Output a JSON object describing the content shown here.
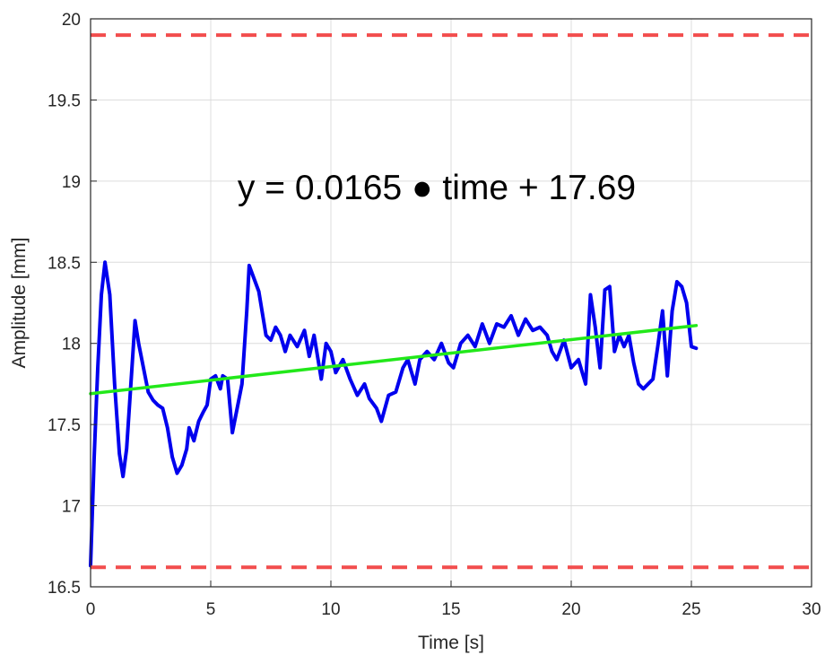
{
  "chart_data": {
    "type": "line",
    "title": "",
    "xlabel": "Time [s]",
    "ylabel": "Amplitude [mm]",
    "xlim": [
      0,
      30
    ],
    "ylim": [
      16.5,
      20
    ],
    "xticks": [
      0,
      5,
      10,
      15,
      20,
      25,
      30
    ],
    "yticks": [
      16.5,
      17,
      17.5,
      18,
      18.5,
      19,
      19.5,
      20
    ],
    "xtick_labels": [
      "0",
      "5",
      "10",
      "15",
      "20",
      "25",
      "30"
    ],
    "ytick_labels": [
      "16.5",
      "17",
      "17.5",
      "18",
      "18.5",
      "19",
      "19.5",
      "20"
    ],
    "grid": true,
    "annotation": "y = 0.0165 ● time + 17.69",
    "series": [
      {
        "color": "#0000ee",
        "style": "solid",
        "x": [
          0,
          0.15,
          0.3,
          0.45,
          0.6,
          0.8,
          1.0,
          1.2,
          1.35,
          1.5,
          1.7,
          1.85,
          2.0,
          2.2,
          2.4,
          2.6,
          2.8,
          3.0,
          3.2,
          3.4,
          3.6,
          3.8,
          4.0,
          4.1,
          4.3,
          4.5,
          4.7,
          4.85,
          5.0,
          5.2,
          5.4,
          5.5,
          5.7,
          5.9,
          6.1,
          6.3,
          6.5,
          6.6,
          6.8,
          7.0,
          7.3,
          7.5,
          7.7,
          7.9,
          8.1,
          8.3,
          8.6,
          8.9,
          9.1,
          9.3,
          9.6,
          9.8,
          10.0,
          10.2,
          10.5,
          10.8,
          11.1,
          11.4,
          11.6,
          11.9,
          12.1,
          12.4,
          12.7,
          13.0,
          13.2,
          13.5,
          13.7,
          14.0,
          14.3,
          14.6,
          14.9,
          15.1,
          15.4,
          15.7,
          16.0,
          16.3,
          16.6,
          16.9,
          17.2,
          17.5,
          17.8,
          18.1,
          18.4,
          18.7,
          19.0,
          19.2,
          19.4,
          19.7,
          20.0,
          20.3,
          20.6,
          20.8,
          21.0,
          21.2,
          21.4,
          21.6,
          21.8,
          22.0,
          22.2,
          22.4,
          22.6,
          22.8,
          23.0,
          23.2,
          23.4,
          23.6,
          23.8,
          24.0,
          24.2,
          24.4,
          24.6,
          24.8,
          25.0,
          25.2
        ],
        "y": [
          16.63,
          17.3,
          17.85,
          18.3,
          18.5,
          18.3,
          17.75,
          17.32,
          17.18,
          17.35,
          17.8,
          18.14,
          18.0,
          17.85,
          17.7,
          17.65,
          17.62,
          17.6,
          17.48,
          17.3,
          17.2,
          17.25,
          17.35,
          17.48,
          17.4,
          17.52,
          17.58,
          17.62,
          17.78,
          17.8,
          17.72,
          17.8,
          17.78,
          17.45,
          17.6,
          17.75,
          18.2,
          18.48,
          18.4,
          18.32,
          18.05,
          18.02,
          18.1,
          18.05,
          17.95,
          18.05,
          17.98,
          18.08,
          17.92,
          18.05,
          17.78,
          18.0,
          17.95,
          17.82,
          17.9,
          17.78,
          17.68,
          17.75,
          17.66,
          17.6,
          17.52,
          17.68,
          17.7,
          17.85,
          17.9,
          17.75,
          17.9,
          17.95,
          17.9,
          18.0,
          17.88,
          17.85,
          18.0,
          18.05,
          17.98,
          18.12,
          18.0,
          18.12,
          18.1,
          18.17,
          18.05,
          18.15,
          18.08,
          18.1,
          18.05,
          17.95,
          17.9,
          18.02,
          17.85,
          17.9,
          17.75,
          18.3,
          18.1,
          17.85,
          18.33,
          18.35,
          17.95,
          18.05,
          17.98,
          18.05,
          17.88,
          17.75,
          17.72,
          17.75,
          17.78,
          17.98,
          18.2,
          17.8,
          18.2,
          18.38,
          18.35,
          18.25,
          17.98,
          17.97
        ]
      },
      {
        "color": "#22e81a",
        "style": "solid",
        "x": [
          0,
          25.2
        ],
        "y": [
          17.69,
          18.11
        ]
      },
      {
        "color": "#f24d4d",
        "style": "dashed",
        "x": [
          0,
          30
        ],
        "y": [
          19.9,
          19.9
        ]
      },
      {
        "color": "#f24d4d",
        "style": "dashed",
        "x": [
          0,
          30
        ],
        "y": [
          16.62,
          16.62
        ]
      }
    ]
  }
}
